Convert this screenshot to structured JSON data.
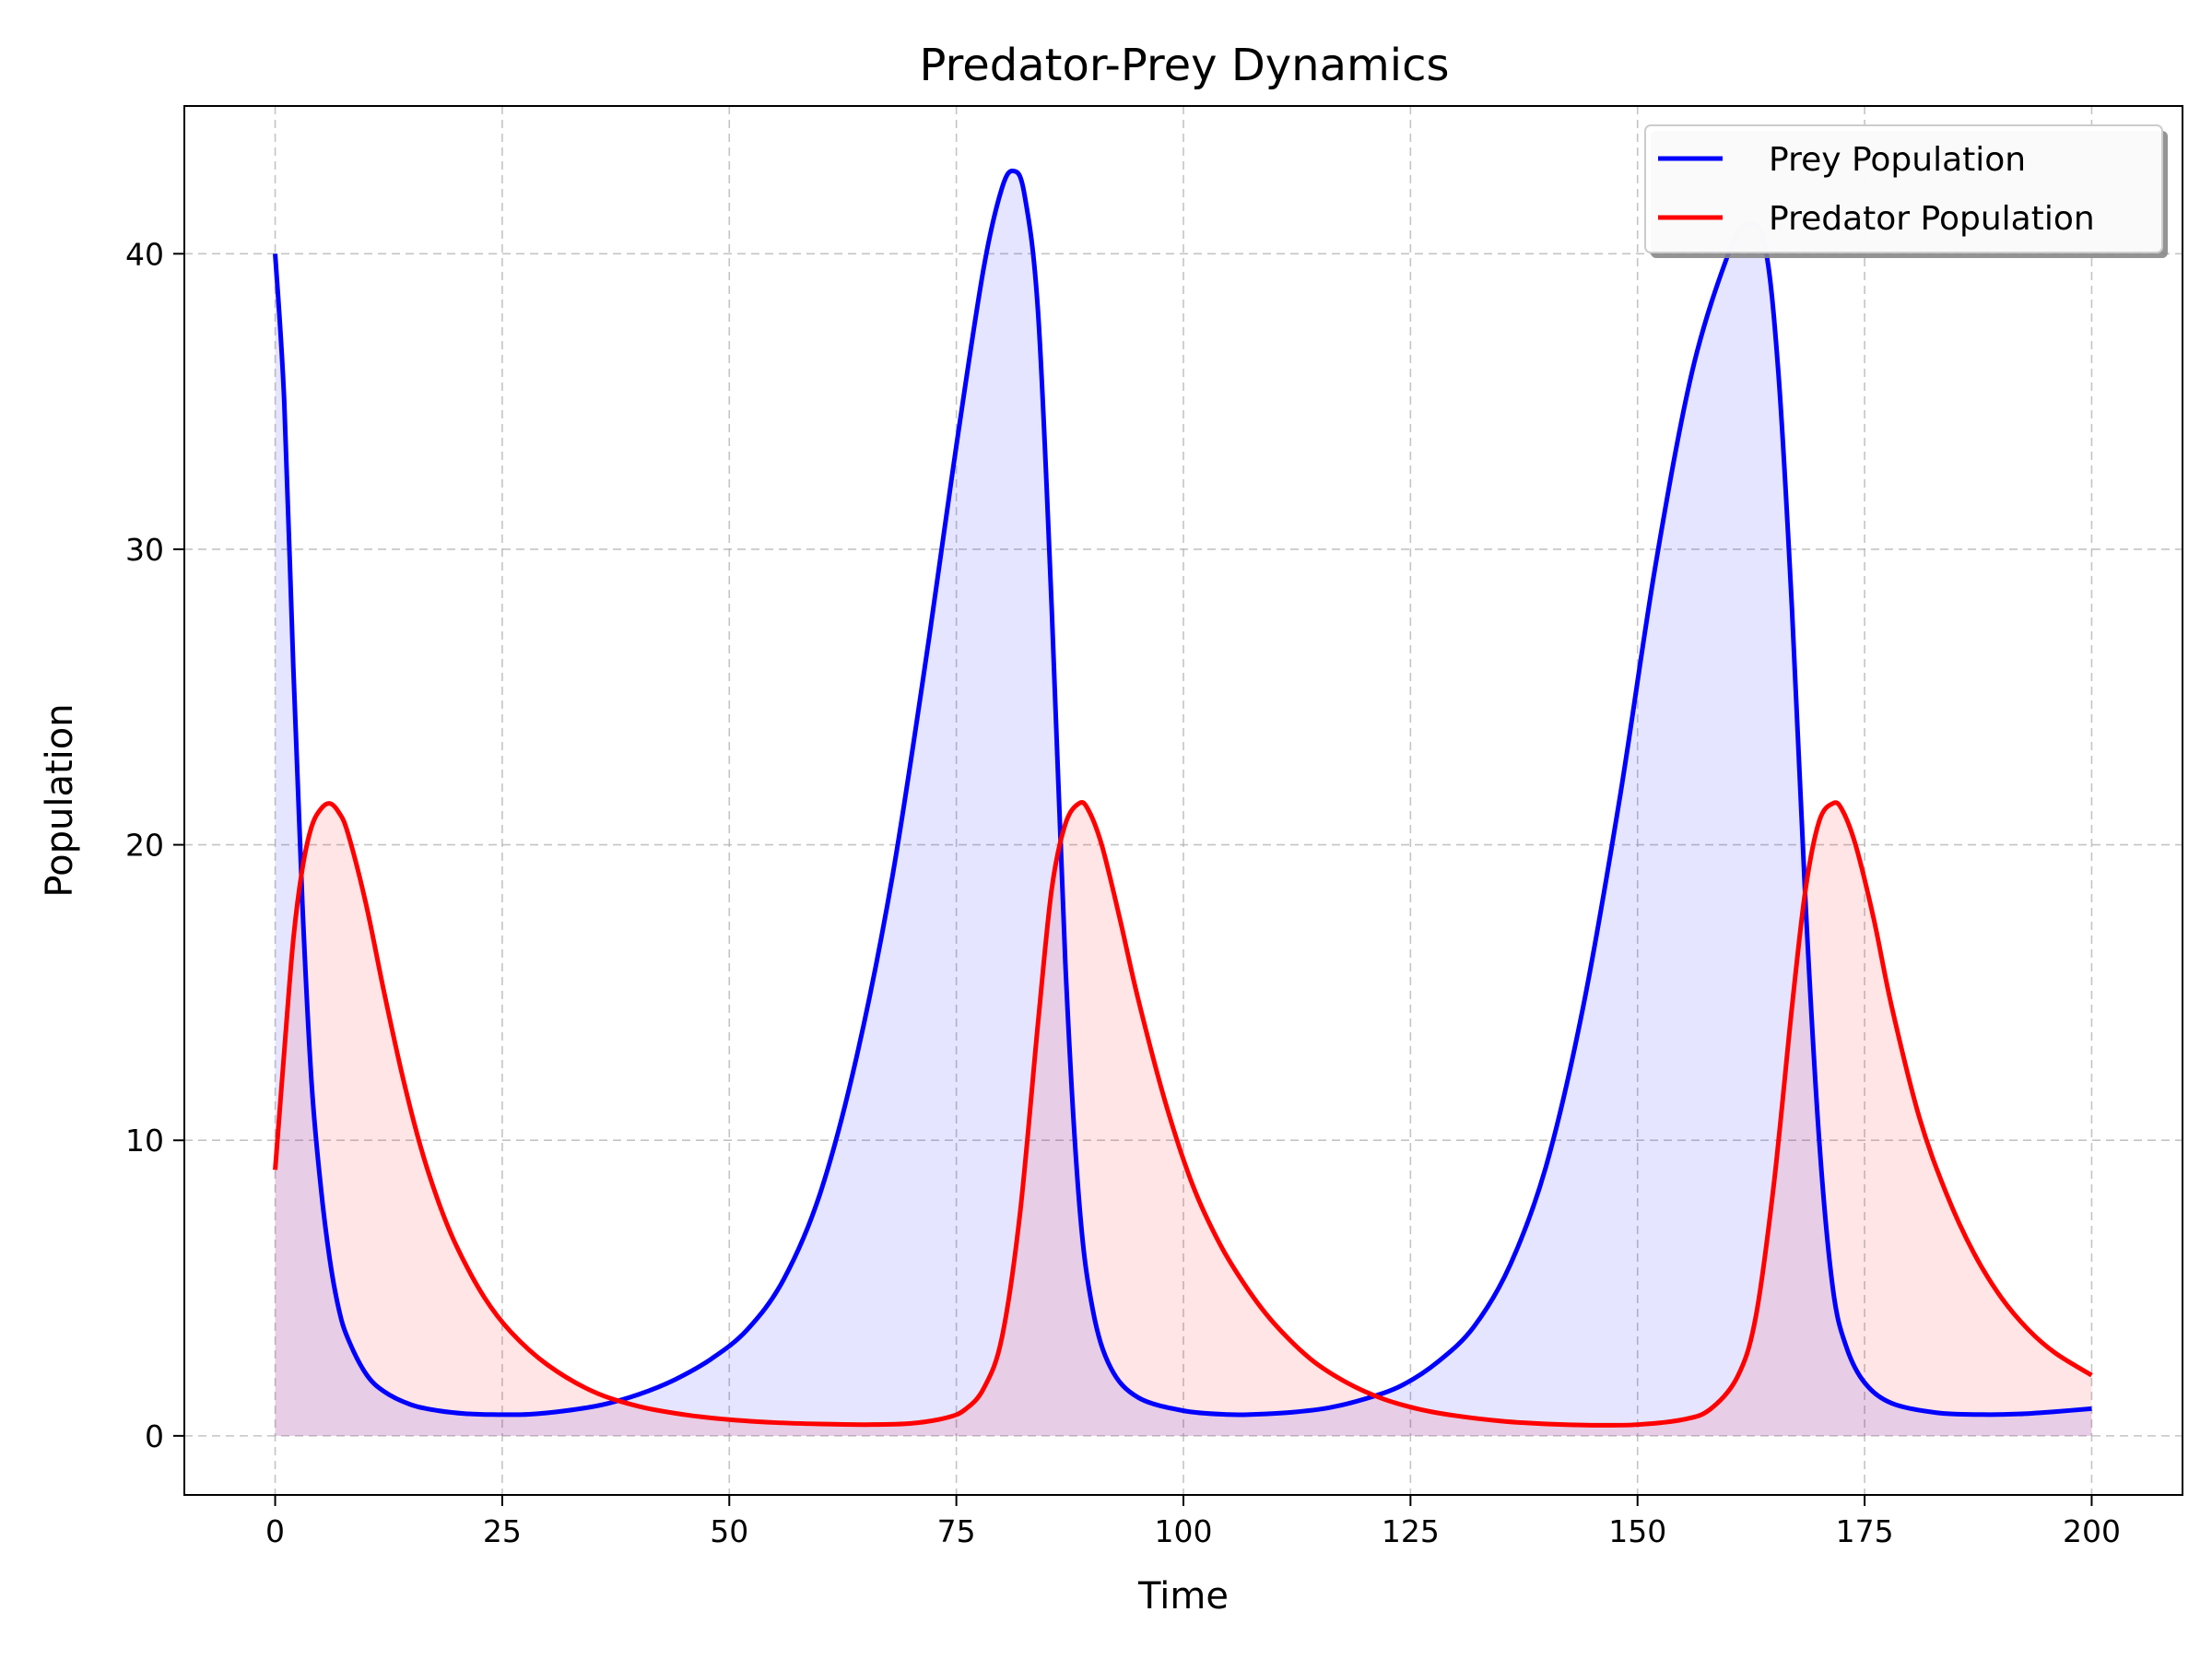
{
  "chart_data": {
    "type": "line",
    "title": "Predator-Prey Dynamics",
    "xlabel": "Time",
    "ylabel": "Population",
    "xlim": [
      -10,
      210
    ],
    "ylim": [
      -2,
      45
    ],
    "xticks": [
      0,
      25,
      50,
      75,
      100,
      125,
      150,
      175,
      200
    ],
    "yticks": [
      0,
      10,
      20,
      30,
      40
    ],
    "grid": true,
    "grid_style": "dashed",
    "legend_position": "top-right",
    "area_fill": true,
    "series": [
      {
        "name": "Prey Population",
        "color": "#0000ff",
        "fill_color": "#0000ff",
        "x": [
          0,
          1,
          2,
          3,
          4,
          5,
          6,
          7,
          8,
          10,
          12,
          15,
          18,
          21,
          24,
          28,
          32,
          36,
          40,
          44,
          48,
          52,
          56,
          60,
          64,
          68,
          72,
          75,
          78,
          80,
          81.3,
          82.5,
          84,
          85.5,
          87,
          88.5,
          90,
          92,
          95,
          100,
          105,
          108,
          112,
          116,
          120,
          124,
          128,
          132,
          136,
          140,
          144,
          148,
          152,
          156,
          160,
          162,
          164,
          165.5,
          167,
          168.5,
          170,
          171.5,
          173,
          175,
          178,
          183,
          188,
          192,
          196,
          200
        ],
        "y": [
          40,
          35,
          26,
          18,
          12,
          8.5,
          6,
          4.3,
          3.3,
          2.1,
          1.5,
          1.05,
          0.85,
          0.75,
          0.72,
          0.73,
          0.85,
          1.05,
          1.4,
          1.9,
          2.6,
          3.6,
          5.3,
          8.2,
          12.8,
          19,
          27,
          33.5,
          39.5,
          42.2,
          42.8,
          42,
          38,
          28,
          16,
          8,
          4.3,
          2.3,
          1.3,
          0.85,
          0.72,
          0.73,
          0.8,
          0.95,
          1.25,
          1.7,
          2.5,
          3.7,
          5.8,
          9.2,
          14.5,
          21.5,
          29.5,
          36,
          40,
          41,
          40.3,
          36,
          28,
          18,
          10,
          5,
          3,
          1.8,
          1.1,
          0.78,
          0.72,
          0.74,
          0.82,
          0.92
        ]
      },
      {
        "name": "Predator Population",
        "color": "#ff0000",
        "fill_color": "#ff0000",
        "x": [
          0,
          1,
          2,
          3,
          4,
          5,
          6,
          7,
          8,
          10,
          12,
          14,
          16,
          18,
          20,
          23,
          26,
          30,
          35,
          40,
          45,
          50,
          55,
          60,
          65,
          70,
          74,
          76,
          78,
          80,
          82,
          84,
          85.5,
          87,
          88.5,
          89.5,
          91,
          93,
          95,
          98,
          101,
          104,
          107,
          110,
          114,
          118,
          122,
          126,
          130,
          135,
          140,
          145,
          150,
          155,
          158,
          161,
          163,
          165,
          167,
          168.5,
          170,
          171.5,
          172.5,
          174,
          176,
          178,
          181,
          184,
          187,
          190,
          193,
          196,
          200
        ],
        "y": [
          9,
          13,
          16.8,
          19.2,
          20.6,
          21.2,
          21.4,
          21.1,
          20.4,
          18,
          15,
          12.2,
          9.8,
          7.9,
          6.4,
          4.7,
          3.5,
          2.4,
          1.5,
          1,
          0.72,
          0.55,
          0.45,
          0.4,
          0.38,
          0.42,
          0.62,
          0.9,
          1.6,
          3.3,
          7.5,
          14,
          18.5,
          20.7,
          21.4,
          21.2,
          20,
          17.5,
          14.8,
          11.3,
          8.5,
          6.5,
          5,
          3.8,
          2.6,
          1.8,
          1.25,
          0.9,
          0.68,
          0.5,
          0.4,
          0.36,
          0.38,
          0.55,
          0.9,
          2,
          4,
          8.5,
          14.5,
          18.5,
          20.8,
          21.4,
          21.2,
          20,
          17.5,
          14.5,
          10.8,
          8.2,
          6.2,
          4.7,
          3.6,
          2.8,
          2.05
        ]
      }
    ]
  }
}
